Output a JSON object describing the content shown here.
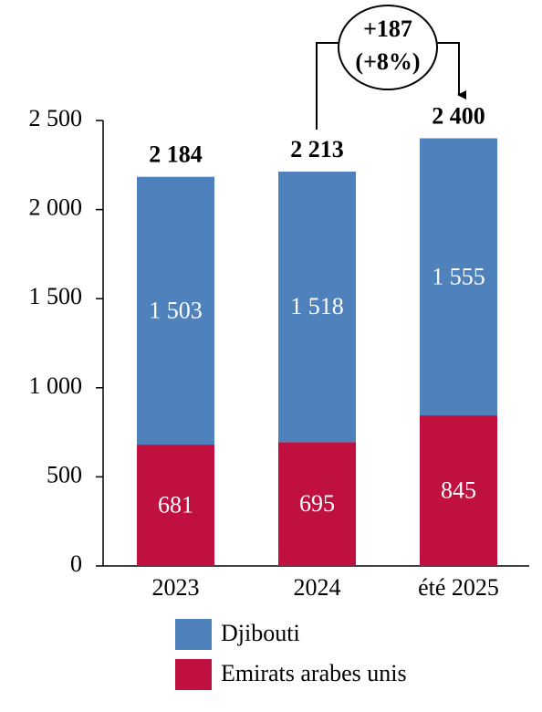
{
  "chart_data": {
    "type": "stacked_bar",
    "categories": [
      "2023",
      "2024",
      "été 2025"
    ],
    "series": [
      {
        "name": "Emirats arabes unis",
        "color": "#c0103f",
        "values": [
          681,
          695,
          845
        ],
        "value_labels": [
          "681",
          "695",
          "845"
        ]
      },
      {
        "name": "Djibouti",
        "color": "#4f81bd",
        "values": [
          1503,
          1518,
          1555
        ],
        "value_labels": [
          "1 503",
          "1 518",
          "1 555"
        ]
      }
    ],
    "totals": [
      2184,
      2213,
      2400
    ],
    "total_labels": [
      "2 184",
      "2 213",
      "2 400"
    ],
    "annotation": {
      "text": "+187",
      "subtext": "(+8%)"
    },
    "ylim": [
      0,
      2500
    ],
    "yticks": [
      0,
      500,
      {
        "value": 1000,
        "label": "1 000"
      },
      {
        "value": 1500,
        "label": "1 500"
      },
      {
        "value": 2000,
        "label": "2 000"
      },
      {
        "value": 2500,
        "label": "2 500"
      }
    ],
    "grid": false
  }
}
